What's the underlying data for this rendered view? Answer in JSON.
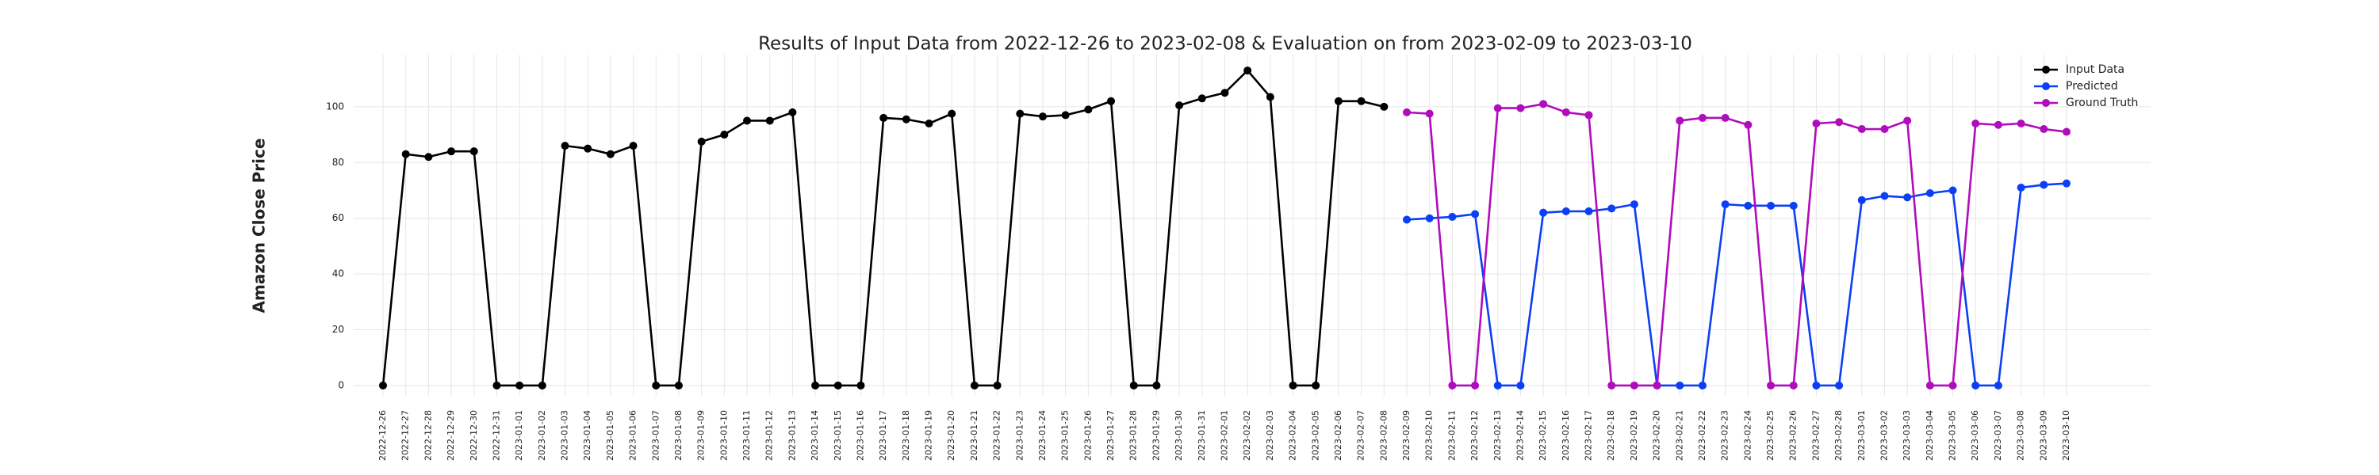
{
  "chart_data": {
    "type": "line",
    "title": "Results of Input Data from 2022-12-26 to 2023-02-08 & Evaluation on from 2023-02-09 to 2023-03-10",
    "y_label": "Amazon Close Price",
    "x": [
      "2022-12-26",
      "2022-12-27",
      "2022-12-28",
      "2022-12-29",
      "2022-12-30",
      "2022-12-31",
      "2023-01-01",
      "2023-01-02",
      "2023-01-03",
      "2023-01-04",
      "2023-01-05",
      "2023-01-06",
      "2023-01-07",
      "2023-01-08",
      "2023-01-09",
      "2023-01-10",
      "2023-01-11",
      "2023-01-12",
      "2023-01-13",
      "2023-01-14",
      "2023-01-15",
      "2023-01-16",
      "2023-01-17",
      "2023-01-18",
      "2023-01-19",
      "2023-01-20",
      "2023-01-21",
      "2023-01-22",
      "2023-01-23",
      "2023-01-24",
      "2023-01-25",
      "2023-01-26",
      "2023-01-27",
      "2023-01-28",
      "2023-01-29",
      "2023-01-30",
      "2023-01-31",
      "2023-02-01",
      "2023-02-02",
      "2023-02-03",
      "2023-02-04",
      "2023-02-05",
      "2023-02-06",
      "2023-02-07",
      "2023-02-08",
      "2023-02-09",
      "2023-02-10",
      "2023-02-11",
      "2023-02-12",
      "2023-02-13",
      "2023-02-14",
      "2023-02-15",
      "2023-02-16",
      "2023-02-17",
      "2023-02-18",
      "2023-02-19",
      "2023-02-20",
      "2023-02-21",
      "2023-02-22",
      "2023-02-23",
      "2023-02-24",
      "2023-02-25",
      "2023-02-26",
      "2023-02-27",
      "2023-02-28",
      "2023-03-01",
      "2023-03-02",
      "2023-03-03",
      "2023-03-04",
      "2023-03-05",
      "2023-03-06",
      "2023-03-07",
      "2023-03-08",
      "2023-03-09",
      "2023-03-10"
    ],
    "series": [
      {
        "name": "Input Data",
        "color": "#000000",
        "values": [
          0,
          83,
          82,
          84,
          84,
          0,
          0,
          0,
          86,
          85,
          83,
          86,
          0,
          0,
          87.5,
          90,
          95,
          95,
          98,
          0,
          0,
          0,
          96,
          95.5,
          94,
          97.5,
          0,
          0,
          97.5,
          96.5,
          97,
          99,
          102,
          0,
          0,
          100.5,
          103,
          105,
          113,
          103.5,
          0,
          0,
          102,
          102,
          100,
          null,
          null,
          null,
          null,
          null,
          null,
          null,
          null,
          null,
          null,
          null,
          null,
          null,
          null,
          null,
          null,
          null,
          null,
          null,
          null,
          null,
          null,
          null,
          null,
          null,
          null,
          null,
          null,
          null,
          null
        ]
      },
      {
        "name": "Predicted",
        "color": "#0b3ff5",
        "values": [
          null,
          null,
          null,
          null,
          null,
          null,
          null,
          null,
          null,
          null,
          null,
          null,
          null,
          null,
          null,
          null,
          null,
          null,
          null,
          null,
          null,
          null,
          null,
          null,
          null,
          null,
          null,
          null,
          null,
          null,
          null,
          null,
          null,
          null,
          null,
          null,
          null,
          null,
          null,
          null,
          null,
          null,
          null,
          null,
          null,
          59.5,
          60,
          60.5,
          61.5,
          0,
          0,
          62,
          62.5,
          62.5,
          63.5,
          65,
          0,
          0,
          0,
          65,
          64.5,
          64.5,
          64.5,
          0,
          0,
          66.5,
          68,
          67.5,
          69,
          70,
          0,
          0,
          71,
          72,
          72.5
        ]
      },
      {
        "name": "Ground Truth",
        "color": "#b00cbc",
        "values": [
          null,
          null,
          null,
          null,
          null,
          null,
          null,
          null,
          null,
          null,
          null,
          null,
          null,
          null,
          null,
          null,
          null,
          null,
          null,
          null,
          null,
          null,
          null,
          null,
          null,
          null,
          null,
          null,
          null,
          null,
          null,
          null,
          null,
          null,
          null,
          null,
          null,
          null,
          null,
          null,
          null,
          null,
          null,
          null,
          null,
          98,
          97.5,
          0,
          0,
          99.5,
          99.5,
          101,
          98,
          97,
          0,
          0,
          0,
          95,
          96,
          96,
          93.5,
          0,
          0,
          94,
          94.5,
          92,
          92,
          95,
          0,
          0,
          94,
          93.5,
          94,
          92,
          91
        ]
      }
    ],
    "ylim": [
      -3.7,
      118.7
    ],
    "yticks": [
      0,
      20,
      40,
      60,
      80,
      100
    ],
    "grid": true,
    "legend": "upper right"
  }
}
